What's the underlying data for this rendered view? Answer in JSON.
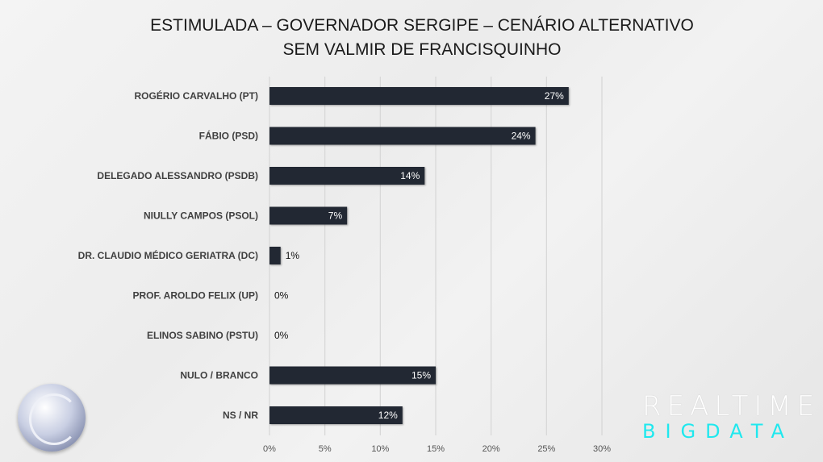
{
  "title_line1": "ESTIMULADA – GOVERNADOR SERGIPE – CENÁRIO ALTERNATIVO",
  "title_line2": "SEM VALMIR DE FRANCISQUINHO",
  "brand": {
    "line1": "REALTIME",
    "line2": "BIGDATA"
  },
  "chart_data": {
    "type": "bar",
    "orientation": "horizontal",
    "title": "ESTIMULADA – GOVERNADOR SERGIPE – CENÁRIO ALTERNATIVO SEM VALMIR DE FRANCISQUINHO",
    "categories": [
      "ROGÉRIO CARVALHO (PT)",
      "FÁBIO (PSD)",
      "DELEGADO ALESSANDRO (PSDB)",
      "NIULLY CAMPOS (PSOL)",
      "DR. CLAUDIO MÉDICO GERIATRA (DC)",
      "PROF. AROLDO FELIX (UP)",
      "ELINOS SABINO (PSTU)",
      "NULO / BRANCO",
      "NS / NR"
    ],
    "values": [
      27,
      24,
      14,
      7,
      1,
      0,
      0,
      15,
      12
    ],
    "data_labels": [
      "27%",
      "24%",
      "14%",
      "7%",
      "1%",
      "0%",
      "0%",
      "15%",
      "12%"
    ],
    "xlim": [
      0,
      30
    ],
    "xticks": [
      "0%",
      "5%",
      "10%",
      "15%",
      "20%",
      "25%",
      "30%"
    ],
    "grid": true,
    "bar_color": "#222833",
    "xlabel": "",
    "ylabel": ""
  }
}
